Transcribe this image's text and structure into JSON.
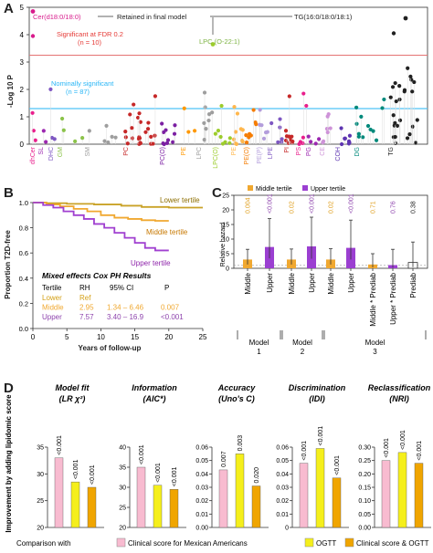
{
  "panelA": {
    "letter": "A",
    "ylabel": "-Log 10 P",
    "yticks": [
      "0",
      "1",
      "2",
      "3",
      "4",
      "5"
    ],
    "retained_label": "Retained in final model",
    "cer_label": "Cer(d18:0/18:0)",
    "tg_label": "TG(16:0/18:0/18:1)",
    "lpc_label": "LPC (O-22:1)",
    "fdr_label": "Significant at FDR 0.2",
    "fdr_n": "(n = 10)",
    "nominal_label": "Nominally significant",
    "nominal_n": "(n = 87)",
    "classes": [
      {
        "name": "dhCer",
        "color": "#e91e8c"
      },
      {
        "name": "SL",
        "color": "#9c27b0"
      },
      {
        "name": "DHC",
        "color": "#7e57c2"
      },
      {
        "name": "GM",
        "color": "#8bc34a"
      },
      {
        "name": "SM",
        "color": "#9e9e9e"
      },
      {
        "name": "PC",
        "color": "#c62828"
      },
      {
        "name": "PC(O)",
        "color": "#7b1fa2"
      },
      {
        "name": "PE",
        "color": "#ff9800"
      },
      {
        "name": "LPC",
        "color": "#9e9e9e"
      },
      {
        "name": "LPC(O)",
        "color": "#9ccc2c"
      },
      {
        "name": "PE",
        "color": "#ffb74d"
      },
      {
        "name": "PE(O)",
        "color": "#f57c00"
      },
      {
        "name": "PE(P)",
        "color": "#b39ddb"
      },
      {
        "name": "LPE",
        "color": "#7e57c2"
      },
      {
        "name": "PI",
        "color": "#c62828"
      },
      {
        "name": "PS",
        "color": "#e91e8c"
      },
      {
        "name": "PG",
        "color": "#9c27b0"
      },
      {
        "name": "CE",
        "color": "#ce93d8"
      },
      {
        "name": "COH",
        "color": "#5e35b1"
      },
      {
        "name": "DG",
        "color": "#00897b"
      },
      {
        "name": "TG",
        "color": "#212121"
      }
    ],
    "fdr_line": 3.25,
    "nominal_line": 1.3
  },
  "panelB": {
    "letter": "B",
    "ylabel": "Proportion T2D-free",
    "xlabel": "Years of follow-up",
    "xticks": [
      "0",
      "5",
      "10",
      "15",
      "20",
      "25"
    ],
    "yticks": [
      "0.0",
      "0.2",
      "0.4",
      "0.6",
      "0.8",
      "1.0"
    ],
    "lower_label": "Lower tertile",
    "middle_label": "Middle tertile",
    "upper_label": "Upper tertile",
    "table_title": "Mixed effects Cox PH Results",
    "table_header": [
      "Tertile",
      "RH",
      "95% CI",
      "P"
    ],
    "rows": [
      {
        "tertile": "Lower",
        "rh": "Ref",
        "ci": "",
        "p": "",
        "color": "#d4a017"
      },
      {
        "tertile": "Middle",
        "rh": "2.95",
        "ci": "1.34 – 6.46",
        "p": "0.007",
        "color": "#f0a830"
      },
      {
        "tertile": "Upper",
        "rh": "7.57",
        "ci": "3.40 – 16.9",
        "p": "<0.001",
        "color": "#8e44ad"
      }
    ],
    "colors": {
      "lower": "#c9a227",
      "middle": "#f0a830",
      "upper": "#a040d0"
    }
  },
  "panelC": {
    "letter": "C",
    "ylabel": "Relative hazard",
    "legend_middle": "Middle tertile",
    "legend_upper": "Upper tertile",
    "yticks": [
      "0",
      "5",
      "10",
      "15",
      "20",
      "25"
    ],
    "bars": [
      {
        "label": "Middle",
        "value": 3.0,
        "lo": 1.3,
        "hi": 6.5,
        "p": "0.004",
        "color": "#f0a830"
      },
      {
        "label": "Upper",
        "value": 7.3,
        "lo": 3.4,
        "hi": 17.0,
        "p": "<0.001",
        "color": "#9b3fd1"
      },
      {
        "label": "Middle",
        "value": 3.0,
        "lo": 1.3,
        "hi": 6.6,
        "p": "0.02",
        "color": "#f0a830"
      },
      {
        "label": "Upper",
        "value": 7.5,
        "lo": 3.3,
        "hi": 17.5,
        "p": "<0.001",
        "color": "#9b3fd1"
      },
      {
        "label": "Middle",
        "value": 3.0,
        "lo": 1.3,
        "hi": 6.7,
        "p": "0.02",
        "color": "#f0a830"
      },
      {
        "label": "Upper",
        "value": 7.0,
        "lo": 3.0,
        "hi": 16.5,
        "p": "<0.001",
        "color": "#9b3fd1"
      },
      {
        "label": "Middle * Prediab",
        "value": 1.3,
        "lo": 0.3,
        "hi": 5.0,
        "p": "0.71",
        "color": "#f0a830"
      },
      {
        "label": "Upper * Prediab",
        "value": 1.1,
        "lo": 0.2,
        "hi": 6.5,
        "p": "0.76",
        "color": "#9b3fd1"
      },
      {
        "label": "Prediab",
        "value": 2.0,
        "lo": 0.4,
        "hi": 9.0,
        "p": "0.38",
        "color": "#ffffff"
      }
    ],
    "models": [
      {
        "name": "Model",
        "num": "1"
      },
      {
        "name": "Model",
        "num": "2"
      },
      {
        "name": "Model",
        "num": "3"
      }
    ]
  },
  "panelD": {
    "letter": "D",
    "ylabel": "Improvement by adding lipidomic score",
    "charts": [
      {
        "title": "Model fit",
        "sub": "(LR χ²)",
        "yticks": [
          "20",
          "25",
          "30",
          "35"
        ],
        "ymin": 20,
        "ymax": 35,
        "values": [
          33,
          28.5,
          27.5
        ],
        "pvals": [
          "<0.001",
          "<0.001",
          "<0.001"
        ]
      },
      {
        "title": "Information",
        "sub": "(AIC*)",
        "yticks": [
          "20",
          "25",
          "30",
          "35",
          "40"
        ],
        "ymin": 20,
        "ymax": 40,
        "values": [
          35,
          30.5,
          29.5
        ],
        "pvals": [
          "<0.001",
          "<0.001",
          "<0.001"
        ]
      },
      {
        "title": "Accuracy",
        "sub": "(Uno's C)",
        "yticks": [
          "0.00",
          "0.01",
          "0.02",
          "0.03",
          "0.04",
          "0.05",
          "0.06"
        ],
        "ymin": 0,
        "ymax": 0.06,
        "values": [
          0.043,
          0.055,
          0.031
        ],
        "pvals": [
          "0.007",
          "0.003",
          "0.020"
        ]
      },
      {
        "title": "Discrimination",
        "sub": "(IDI)",
        "yticks": [
          "0",
          "0.01",
          "0.02",
          "0.03",
          "0.04",
          "0.05",
          "0.06"
        ],
        "ymin": 0,
        "ymax": 0.06,
        "values": [
          0.048,
          0.059,
          0.037
        ],
        "pvals": [
          "<0.001",
          "<0.001",
          "<0.001"
        ]
      },
      {
        "title": "Reclassification",
        "sub": "(NRI)",
        "yticks": [
          "0.00",
          "0.05",
          "0.10",
          "0.15",
          "0.20",
          "0.25",
          "0.30"
        ],
        "ymin": 0,
        "ymax": 0.3,
        "values": [
          0.25,
          0.28,
          0.24
        ],
        "pvals": [
          "<0.001",
          "<0.001",
          "<0.001"
        ]
      }
    ],
    "legend_prefix": "Comparison with",
    "legend": [
      {
        "label": "Clinical score for Mexican Americans",
        "color": "#f8bbd0"
      },
      {
        "label": "OGTT",
        "color": "#f5ef1c"
      },
      {
        "label": "Clinical score & OGTT",
        "color": "#f0a500"
      }
    ]
  }
}
